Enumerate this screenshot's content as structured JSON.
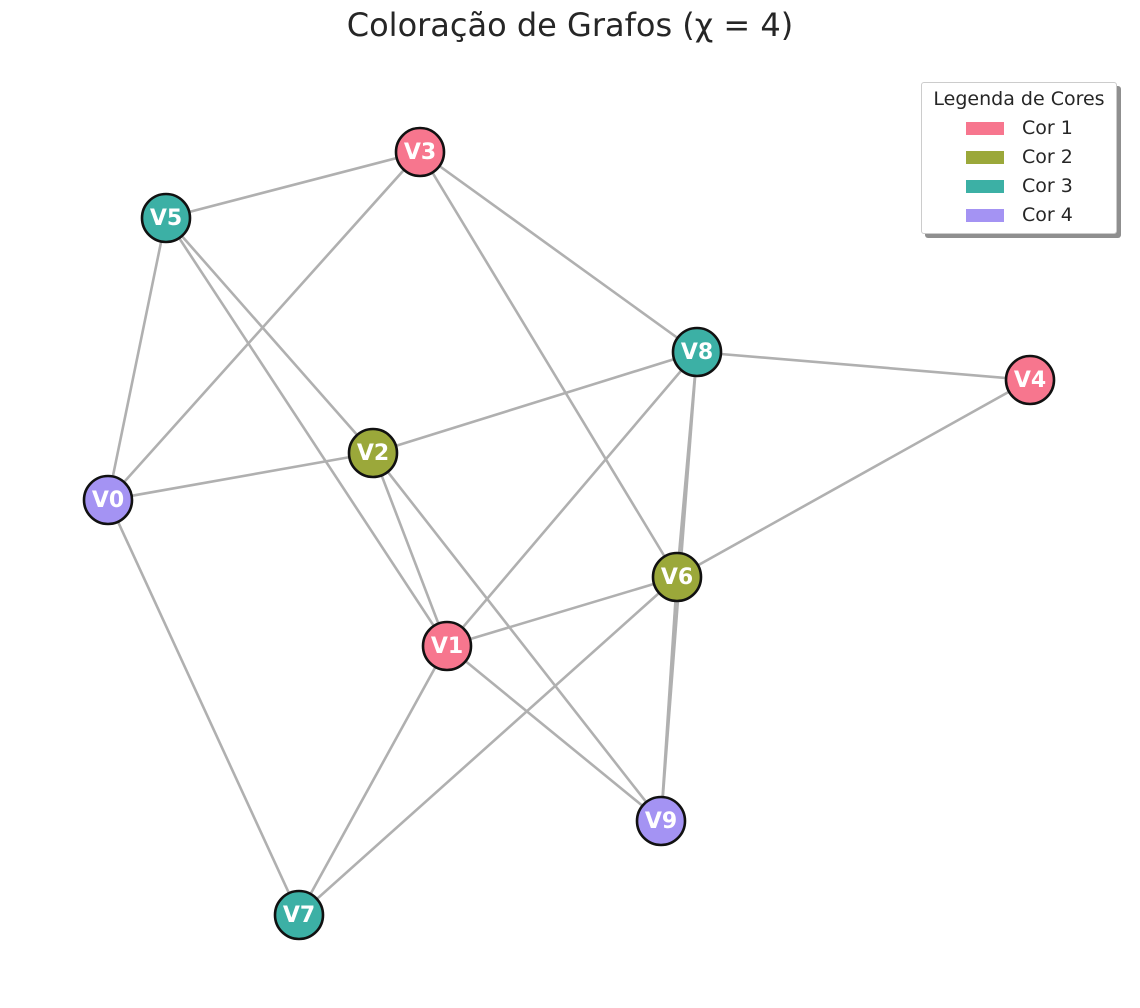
{
  "title": "Coloração de Grafos (χ = 4)",
  "colors": {
    "cor1": "#f7768e",
    "cor2": "#9ba83a",
    "cor3": "#3cb0a5",
    "cor4": "#a493f3",
    "edge": "#b0b0b0",
    "node_border": "#111111"
  },
  "legend": {
    "title": "Legenda de Cores",
    "items": [
      {
        "label": "Cor 1",
        "color": "#f7768e"
      },
      {
        "label": "Cor 2",
        "color": "#9ba83a"
      },
      {
        "label": "Cor 3",
        "color": "#3cb0a5"
      },
      {
        "label": "Cor 4",
        "color": "#a493f3"
      }
    ]
  },
  "nodes": [
    {
      "id": "V0",
      "label": "V0",
      "color_group": 4
    },
    {
      "id": "V1",
      "label": "V1",
      "color_group": 1
    },
    {
      "id": "V2",
      "label": "V2",
      "color_group": 2
    },
    {
      "id": "V3",
      "label": "V3",
      "color_group": 1
    },
    {
      "id": "V4",
      "label": "V4",
      "color_group": 1
    },
    {
      "id": "V5",
      "label": "V5",
      "color_group": 3
    },
    {
      "id": "V6",
      "label": "V6",
      "color_group": 2
    },
    {
      "id": "V7",
      "label": "V7",
      "color_group": 3
    },
    {
      "id": "V8",
      "label": "V8",
      "color_group": 3
    },
    {
      "id": "V9",
      "label": "V9",
      "color_group": 4
    }
  ],
  "edges": [
    [
      "V5",
      "V3"
    ],
    [
      "V5",
      "V0"
    ],
    [
      "V5",
      "V2"
    ],
    [
      "V5",
      "V1"
    ],
    [
      "V3",
      "V0"
    ],
    [
      "V3",
      "V8"
    ],
    [
      "V3",
      "V6"
    ],
    [
      "V8",
      "V4"
    ],
    [
      "V8",
      "V2"
    ],
    [
      "V8",
      "V1"
    ],
    [
      "V8",
      "V6"
    ],
    [
      "V8",
      "V9"
    ],
    [
      "V4",
      "V6"
    ],
    [
      "V0",
      "V2"
    ],
    [
      "V0",
      "V7"
    ],
    [
      "V2",
      "V1"
    ],
    [
      "V2",
      "V9"
    ],
    [
      "V6",
      "V1"
    ],
    [
      "V6",
      "V7"
    ],
    [
      "V6",
      "V9"
    ],
    [
      "V1",
      "V9"
    ],
    [
      "V1",
      "V7"
    ]
  ]
}
